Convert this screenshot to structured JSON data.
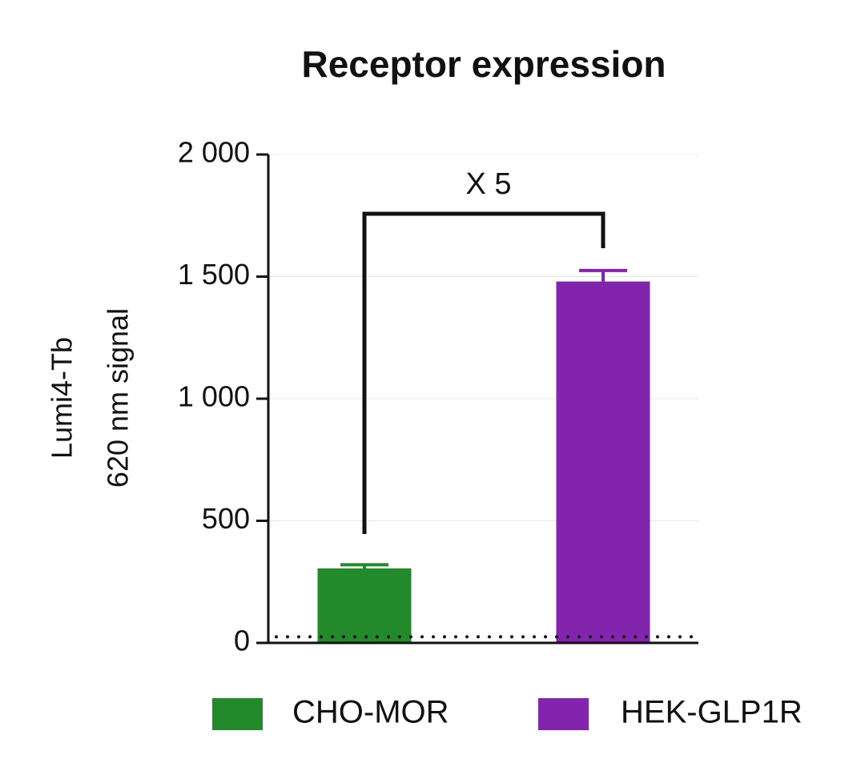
{
  "chart_data": {
    "type": "bar",
    "title": "Receptor expression",
    "ylabel": [
      "Lumi4-Tb",
      "620 nm signal"
    ],
    "categories": [
      "CHO-MOR",
      "HEK-GLP1R"
    ],
    "values": [
      305,
      1480
    ],
    "errors": [
      15,
      45
    ],
    "colors": [
      "#238a2b",
      "#8224ad"
    ],
    "ylim": [
      0,
      2000
    ],
    "yticks": [
      0,
      500,
      {
        "value": 1000,
        "label": "1 000"
      },
      {
        "value": 1500,
        "label": "1 500"
      },
      {
        "value": 2000,
        "label": "2 000"
      }
    ],
    "grid": true,
    "reference_line": 25,
    "annotation": "X 5",
    "legend": "bottom"
  }
}
